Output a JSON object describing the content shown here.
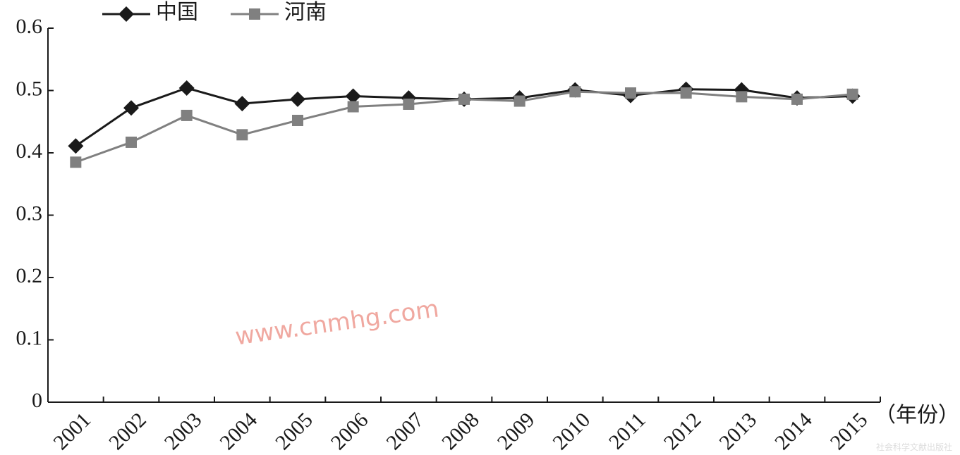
{
  "chart_data": {
    "type": "line",
    "x_label": "（年份）",
    "watermark": "www.cnmhg.com",
    "publisher": "社会科学文献出版社",
    "categories": [
      "2001",
      "2002",
      "2003",
      "2004",
      "2005",
      "2006",
      "2007",
      "2008",
      "2009",
      "2010",
      "2011",
      "2012",
      "2013",
      "2014",
      "2015"
    ],
    "series": [
      {
        "name": "中国",
        "color": "#1a1a1a",
        "marker": "diamond",
        "values": [
          0.411,
          0.472,
          0.504,
          0.479,
          0.486,
          0.491,
          0.488,
          0.486,
          0.488,
          0.501,
          0.492,
          0.502,
          0.501,
          0.488,
          0.491
        ]
      },
      {
        "name": "河南",
        "color": "#808080",
        "marker": "square",
        "values": [
          0.385,
          0.417,
          0.46,
          0.429,
          0.452,
          0.474,
          0.478,
          0.486,
          0.483,
          0.498,
          0.496,
          0.496,
          0.49,
          0.486,
          0.494
        ]
      }
    ],
    "ylim": [
      0,
      0.6
    ],
    "yticks": [
      0,
      0.1,
      0.2,
      0.3,
      0.4,
      0.5,
      0.6
    ]
  }
}
